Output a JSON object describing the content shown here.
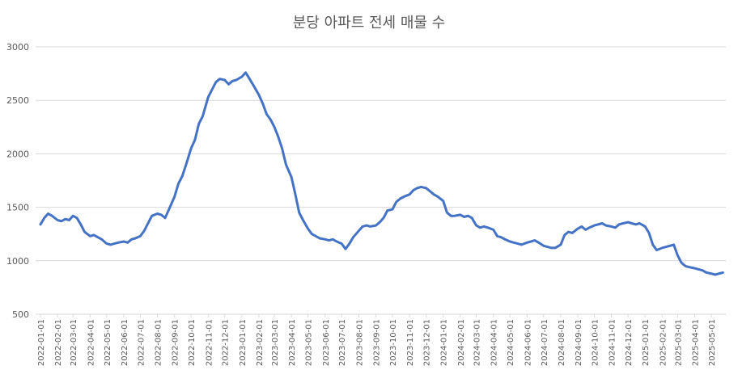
{
  "chart_data": {
    "type": "line",
    "title": "분당 아파트 전세 매물 수",
    "xlabel": "",
    "ylabel": "",
    "ylim": [
      500,
      3000
    ],
    "y_ticks": [
      500,
      1000,
      1500,
      2000,
      2500,
      3000
    ],
    "grid": true,
    "legend": "none",
    "x_tick_labels": [
      "2022-01-01",
      "2022-02-01",
      "2022-03-01",
      "2022-04-01",
      "2022-05-01",
      "2022-06-01",
      "2022-07-01",
      "2022-08-01",
      "2022-09-01",
      "2022-10-01",
      "2022-11-01",
      "2022-12-01",
      "2023-01-01",
      "2023-02-01",
      "2023-03-01",
      "2023-04-01",
      "2023-05-01",
      "2023-06-01",
      "2023-07-01",
      "2023-08-01",
      "2023-09-01",
      "2023-10-01",
      "2023-11-01",
      "2023-12-01",
      "2024-01-01",
      "2024-02-01",
      "2024-03-01",
      "2024-04-01",
      "2024-05-01",
      "2024-06-01",
      "2024-07-01",
      "2024-08-01",
      "2024-09-01",
      "2024-10-01",
      "2024-11-01",
      "2024-12-01",
      "2025-01-01",
      "2025-02-01",
      "2025-03-01",
      "2025-04-01",
      "2025-05-01"
    ],
    "line_color": "#4472C4",
    "series": [
      {
        "x": [
          "2022-01-01",
          "2022-01-08",
          "2022-01-15",
          "2022-01-22",
          "2022-02-01",
          "2022-02-08",
          "2022-02-15",
          "2022-02-22",
          "2022-03-01",
          "2022-03-08",
          "2022-03-15",
          "2022-03-22",
          "2022-04-01",
          "2022-04-08",
          "2022-04-15",
          "2022-04-22",
          "2022-05-01",
          "2022-05-08",
          "2022-05-15",
          "2022-05-22",
          "2022-06-01",
          "2022-06-08",
          "2022-06-15",
          "2022-06-22",
          "2022-07-01",
          "2022-07-08",
          "2022-07-15",
          "2022-07-22",
          "2022-08-01",
          "2022-08-08",
          "2022-08-15",
          "2022-08-22",
          "2022-09-01",
          "2022-09-08",
          "2022-09-15",
          "2022-09-22",
          "2022-10-01",
          "2022-10-08",
          "2022-10-15",
          "2022-10-22",
          "2022-11-01",
          "2022-11-08",
          "2022-11-15",
          "2022-11-22",
          "2022-12-01",
          "2022-12-08",
          "2022-12-15",
          "2022-12-22",
          "2023-01-01",
          "2023-01-08",
          "2023-01-15",
          "2023-01-22",
          "2023-02-01",
          "2023-02-08",
          "2023-02-15",
          "2023-02-22",
          "2023-03-01",
          "2023-03-08",
          "2023-03-15",
          "2023-03-22",
          "2023-04-01",
          "2023-04-08",
          "2023-04-15",
          "2023-04-22",
          "2023-05-01",
          "2023-05-08",
          "2023-05-15",
          "2023-05-22",
          "2023-06-01",
          "2023-06-08",
          "2023-06-15",
          "2023-06-22",
          "2023-07-01",
          "2023-07-08",
          "2023-07-15",
          "2023-07-22",
          "2023-08-01",
          "2023-08-08",
          "2023-08-15",
          "2023-08-22",
          "2023-09-01",
          "2023-09-08",
          "2023-09-15",
          "2023-09-22",
          "2023-10-01",
          "2023-10-08",
          "2023-10-15",
          "2023-10-22",
          "2023-11-01",
          "2023-11-08",
          "2023-11-15",
          "2023-11-22",
          "2023-12-01",
          "2023-12-08",
          "2023-12-15",
          "2023-12-22",
          "2024-01-01",
          "2024-01-08",
          "2024-01-15",
          "2024-01-22",
          "2024-02-01",
          "2024-02-08",
          "2024-02-15",
          "2024-02-22",
          "2024-03-01",
          "2024-03-08",
          "2024-03-15",
          "2024-03-22",
          "2024-04-01",
          "2024-04-08",
          "2024-04-15",
          "2024-04-22",
          "2024-05-01",
          "2024-05-08",
          "2024-05-15",
          "2024-05-22",
          "2024-06-01",
          "2024-06-08",
          "2024-06-15",
          "2024-06-22",
          "2024-07-01",
          "2024-07-08",
          "2024-07-15",
          "2024-07-22",
          "2024-08-01",
          "2024-08-08",
          "2024-08-15",
          "2024-08-22",
          "2024-09-01",
          "2024-09-08",
          "2024-09-15",
          "2024-09-22",
          "2024-10-01",
          "2024-10-08",
          "2024-10-15",
          "2024-10-22",
          "2024-11-01",
          "2024-11-08",
          "2024-11-15",
          "2024-11-22",
          "2024-12-01",
          "2024-12-08",
          "2024-12-15",
          "2024-12-22",
          "2025-01-01",
          "2025-01-08",
          "2025-01-15",
          "2025-01-22",
          "2025-02-01",
          "2025-02-08",
          "2025-02-15",
          "2025-02-22",
          "2025-03-01",
          "2025-03-08",
          "2025-03-15",
          "2025-03-22",
          "2025-04-01",
          "2025-04-08",
          "2025-04-15",
          "2025-04-22",
          "2025-05-01",
          "2025-05-08",
          "2025-05-15",
          "2025-05-22"
        ],
        "values": [
          1340,
          1400,
          1440,
          1420,
          1380,
          1370,
          1390,
          1380,
          1420,
          1400,
          1340,
          1270,
          1230,
          1240,
          1220,
          1200,
          1160,
          1150,
          1160,
          1170,
          1180,
          1170,
          1200,
          1210,
          1230,
          1280,
          1350,
          1420,
          1440,
          1430,
          1400,
          1480,
          1600,
          1720,
          1790,
          1900,
          2050,
          2130,
          2280,
          2350,
          2530,
          2600,
          2670,
          2700,
          2690,
          2650,
          2680,
          2690,
          2720,
          2760,
          2700,
          2640,
          2550,
          2470,
          2370,
          2320,
          2250,
          2160,
          2050,
          1900,
          1780,
          1620,
          1450,
          1380,
          1300,
          1250,
          1230,
          1210,
          1200,
          1190,
          1200,
          1180,
          1160,
          1110,
          1160,
          1220,
          1280,
          1320,
          1330,
          1320,
          1330,
          1360,
          1400,
          1470,
          1480,
          1550,
          1580,
          1600,
          1620,
          1660,
          1680,
          1690,
          1680,
          1650,
          1620,
          1600,
          1560,
          1450,
          1420,
          1420,
          1430,
          1410,
          1420,
          1400,
          1330,
          1310,
          1320,
          1310,
          1290,
          1230,
          1220,
          1200,
          1180,
          1170,
          1160,
          1150,
          1170,
          1180,
          1190,
          1170,
          1140,
          1130,
          1120,
          1120,
          1150,
          1240,
          1270,
          1260,
          1300,
          1320,
          1290,
          1310,
          1330,
          1340,
          1350,
          1330,
          1320,
          1310,
          1340,
          1350,
          1360,
          1350,
          1340,
          1350,
          1320,
          1260,
          1150,
          1100,
          1120,
          1130,
          1140,
          1150,
          1050,
          980,
          950,
          940,
          930,
          920,
          910,
          890,
          880,
          870,
          880,
          890
        ]
      }
    ]
  }
}
